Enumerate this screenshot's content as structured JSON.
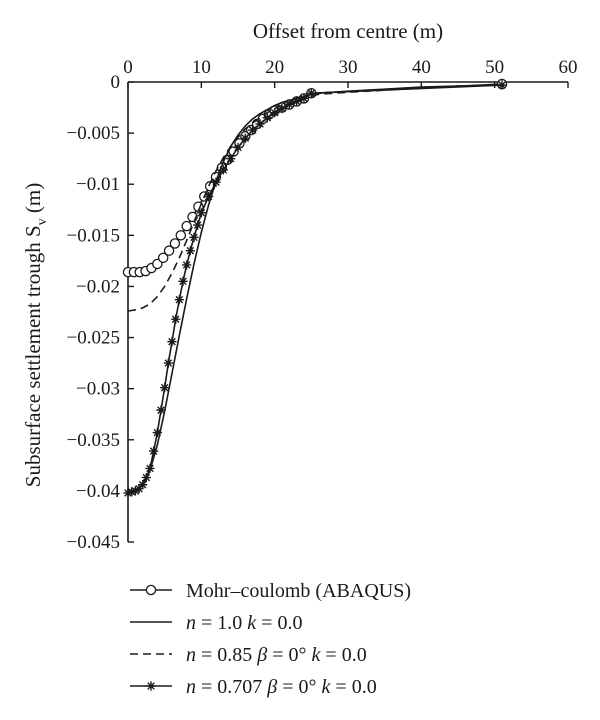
{
  "chart_data": {
    "type": "line",
    "xlabel": "Offset from centre (m)",
    "ylabel": "Subsurface settlement trough S",
    "ylabel_subscript": "v",
    "ylabel_unit": " (m)",
    "xlim": [
      0,
      60
    ],
    "ylim": [
      -0.045,
      0
    ],
    "x_ticks": [
      0,
      10,
      20,
      30,
      40,
      50,
      60
    ],
    "x_tick_labels": [
      "0",
      "10",
      "20",
      "30",
      "40",
      "50",
      "60"
    ],
    "y_ticks": [
      0,
      -0.005,
      -0.01,
      -0.015,
      -0.02,
      -0.025,
      -0.03,
      -0.035,
      -0.04,
      -0.045
    ],
    "y_tick_labels": [
      "0",
      "−0.005",
      "−0.01",
      "−0.015",
      "−0.02",
      "−0.025",
      "−0.03",
      "−0.035",
      "−0.04",
      "−0.045"
    ],
    "x_axis_position": "top",
    "grid": false,
    "legend_position": "bottom",
    "series": [
      {
        "name": "Mohr–coulomb (ABAQUS)",
        "legend_parts": [
          {
            "t": "Mohr–coulomb (ABAQUS)",
            "i": false
          }
        ],
        "line": "solid",
        "marker": "circle",
        "color": "#1a1a1a",
        "x": [
          0,
          0.8,
          1.6,
          2.4,
          3.2,
          4.0,
          4.8,
          5.6,
          6.4,
          7.2,
          8.0,
          8.8,
          9.6,
          10.4,
          11.2,
          12.0,
          12.8,
          13.6,
          14.4,
          15.2,
          16.0,
          16.8,
          17.6,
          18.4,
          19.2,
          20.0,
          21.0,
          22.0,
          23.0,
          24.0,
          25.0,
          51.0
        ],
        "y": [
          -0.0186,
          -0.0186,
          -0.0186,
          -0.0185,
          -0.0182,
          -0.0178,
          -0.0172,
          -0.0165,
          -0.0158,
          -0.015,
          -0.0141,
          -0.0132,
          -0.0122,
          -0.0112,
          -0.0102,
          -0.0093,
          -0.0084,
          -0.0076,
          -0.0068,
          -0.006,
          -0.0053,
          -0.0047,
          -0.0041,
          -0.0036,
          -0.0032,
          -0.0028,
          -0.0025,
          -0.0022,
          -0.0019,
          -0.0016,
          -0.0011,
          -0.0002
        ]
      },
      {
        "name": "n = 1.0 k = 0.0",
        "legend_parts": [
          {
            "t": "n",
            "i": true
          },
          {
            "t": " = 1.0 ",
            "i": false
          },
          {
            "t": "k",
            "i": true
          },
          {
            "t": " = 0.0",
            "i": false
          }
        ],
        "line": "solid",
        "marker": "none",
        "color": "#1a1a1a",
        "x": [
          0,
          1,
          2,
          3,
          4,
          5,
          6,
          7,
          8,
          9,
          10,
          11,
          12,
          13,
          14,
          15,
          16,
          17,
          18,
          19,
          20,
          21,
          22,
          23,
          24,
          25,
          26,
          30,
          35,
          40,
          45,
          51
        ],
        "y": [
          -0.0402,
          -0.04,
          -0.0394,
          -0.038,
          -0.0355,
          -0.0322,
          -0.0285,
          -0.0248,
          -0.0212,
          -0.0178,
          -0.0147,
          -0.012,
          -0.0097,
          -0.0078,
          -0.0063,
          -0.0052,
          -0.0043,
          -0.0036,
          -0.0031,
          -0.0027,
          -0.0023,
          -0.002,
          -0.0018,
          -0.0016,
          -0.0014,
          -0.0012,
          -0.0011,
          -0.0009,
          -0.0007,
          -0.0005,
          -0.0004,
          -0.0003
        ]
      },
      {
        "name": "n = 0.85 β = 0° k = 0.0",
        "legend_parts": [
          {
            "t": "n",
            "i": true
          },
          {
            "t": " = 0.85 ",
            "i": false
          },
          {
            "t": "β",
            "i": true
          },
          {
            "t": " = 0° ",
            "i": false
          },
          {
            "t": "k",
            "i": true
          },
          {
            "t": " = 0.0",
            "i": false
          }
        ],
        "line": "dashed",
        "marker": "none",
        "color": "#1a1a1a",
        "x": [
          0,
          1,
          2,
          3,
          4,
          5,
          6,
          7,
          8,
          9,
          10,
          11,
          12,
          13,
          14,
          15,
          16,
          17,
          18,
          19,
          20,
          21,
          22,
          23,
          24,
          25,
          26,
          30,
          35,
          40,
          45,
          51
        ],
        "y": [
          -0.0224,
          -0.0223,
          -0.0221,
          -0.0217,
          -0.021,
          -0.02,
          -0.0187,
          -0.0172,
          -0.0155,
          -0.0137,
          -0.0119,
          -0.0102,
          -0.0087,
          -0.0074,
          -0.0063,
          -0.0054,
          -0.0046,
          -0.004,
          -0.0035,
          -0.003,
          -0.0026,
          -0.0023,
          -0.002,
          -0.0018,
          -0.0016,
          -0.0014,
          -0.0012,
          -0.001,
          -0.0008,
          -0.0006,
          -0.0004,
          -0.0003
        ]
      },
      {
        "name": "n = 0.707 β = 0° k = 0.0",
        "legend_parts": [
          {
            "t": "n",
            "i": true
          },
          {
            "t": " = 0.707 ",
            "i": false
          },
          {
            "t": "β",
            "i": true
          },
          {
            "t": " = 0° ",
            "i": false
          },
          {
            "t": "k",
            "i": true
          },
          {
            "t": " = 0.0",
            "i": false
          }
        ],
        "line": "solid",
        "marker": "asterisk",
        "color": "#1a1a1a",
        "x": [
          0,
          0.5,
          1.0,
          1.5,
          2.0,
          2.5,
          3.0,
          3.5,
          4.0,
          4.5,
          5.0,
          5.5,
          6.0,
          6.5,
          7.0,
          7.5,
          8.0,
          8.5,
          9.0,
          9.5,
          10.0,
          11.0,
          12.0,
          13.0,
          14.0,
          15.0,
          16.0,
          17.0,
          18.0,
          19.0,
          20.0,
          21.0,
          22.0,
          23.0,
          24.0,
          25.0,
          51.0
        ],
        "y": [
          -0.0402,
          -0.0401,
          -0.04,
          -0.0398,
          -0.0394,
          -0.0387,
          -0.0378,
          -0.0361,
          -0.0343,
          -0.0321,
          -0.0299,
          -0.0275,
          -0.0254,
          -0.0232,
          -0.0213,
          -0.0195,
          -0.0179,
          -0.0165,
          -0.0152,
          -0.014,
          -0.0128,
          -0.0112,
          -0.0098,
          -0.0086,
          -0.0075,
          -0.0064,
          -0.0055,
          -0.0047,
          -0.0041,
          -0.0035,
          -0.003,
          -0.0026,
          -0.0022,
          -0.0019,
          -0.0016,
          -0.0011,
          -0.0003
        ]
      }
    ]
  }
}
